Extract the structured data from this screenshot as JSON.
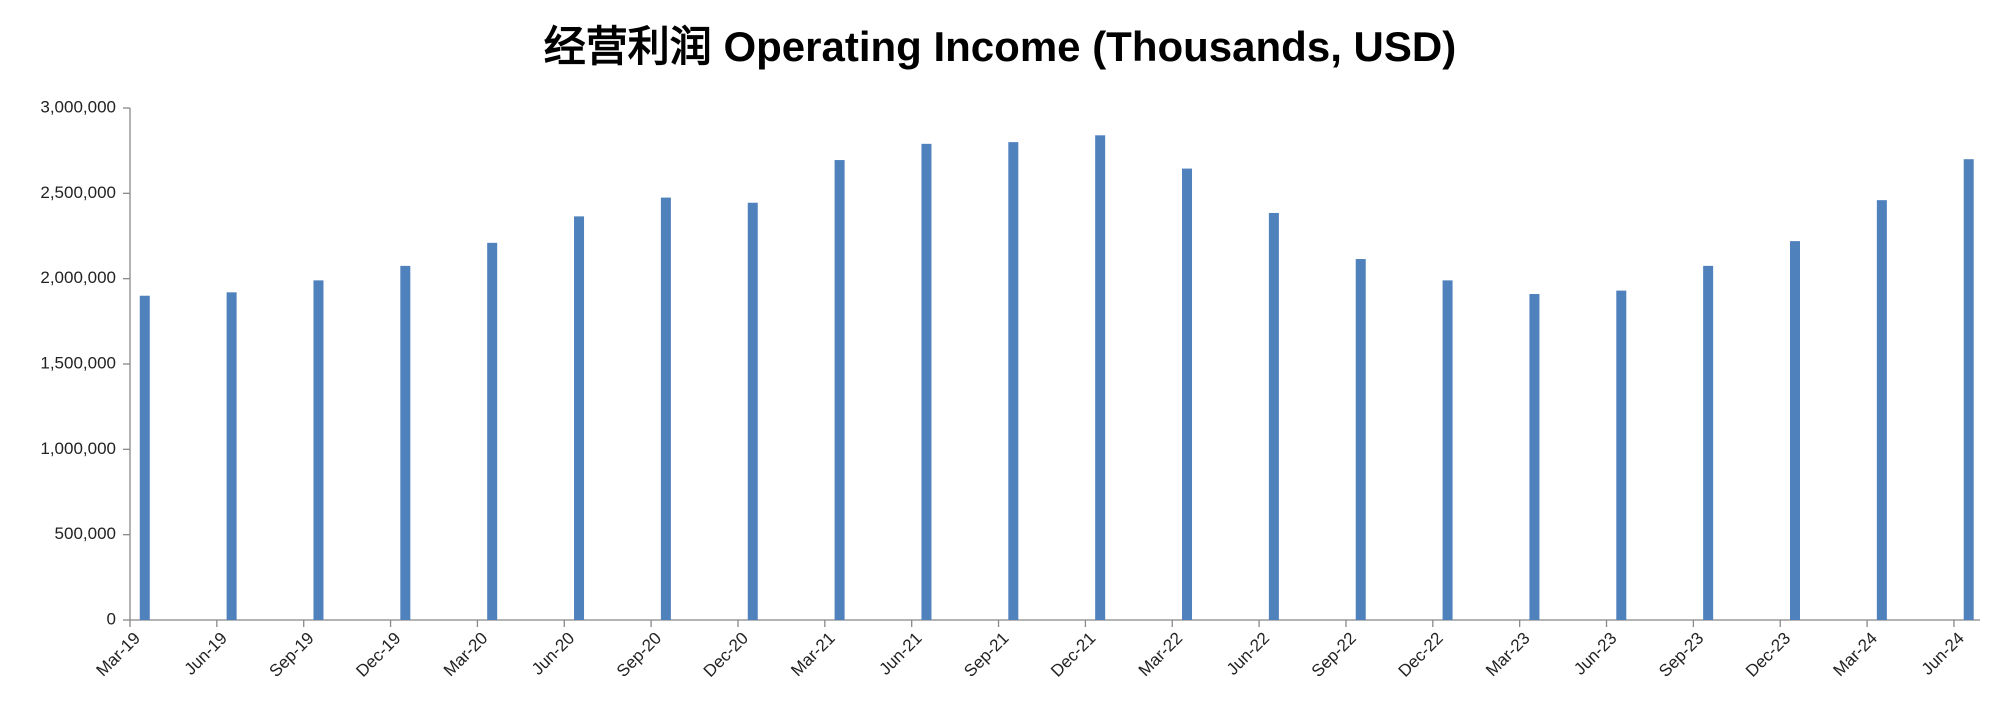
{
  "chart_data": {
    "type": "bar",
    "title": "经营利润 Operating Income (Thousands, USD)",
    "categories": [
      "Mar-19",
      "Jun-19",
      "Sep-19",
      "Dec-19",
      "Mar-20",
      "Jun-20",
      "Sep-20",
      "Dec-20",
      "Mar-21",
      "Jun-21",
      "Sep-21",
      "Dec-21",
      "Mar-22",
      "Jun-22",
      "Sep-22",
      "Dec-22",
      "Mar-23",
      "Jun-23",
      "Sep-23",
      "Dec-23",
      "Mar-24",
      "Jun-24"
    ],
    "values": [
      1900000,
      1920000,
      1990000,
      2075000,
      2210000,
      2365000,
      2475000,
      2445000,
      2695000,
      2790000,
      2800000,
      2840000,
      2645000,
      2385000,
      2115000,
      1990000,
      1910000,
      1930000,
      2075000,
      2220000,
      2460000,
      2700000
    ],
    "color": "#4f81bd",
    "ylim": [
      0,
      3000000
    ],
    "yticks": [
      0,
      {
        "value": 500000,
        "label": "500,000"
      },
      {
        "value": 1000000,
        "label": "1,000,000"
      },
      {
        "value": 1500000,
        "label": "1,500,000"
      },
      {
        "value": 2000000,
        "label": "2,000,000"
      },
      {
        "value": 2500000,
        "label": "2,500,000"
      },
      {
        "value": 3000000,
        "label": "3,000,000"
      }
    ],
    "grid": false
  }
}
